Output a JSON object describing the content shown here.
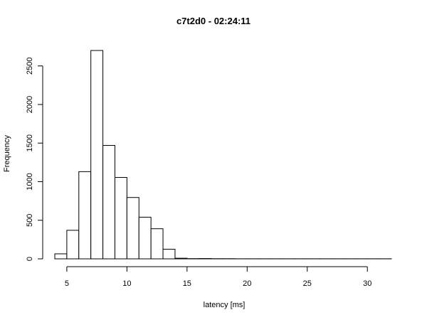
{
  "chart_data": {
    "type": "bar",
    "title": "c7t2d0 - 02:24:11",
    "xlabel": "latency [ms]",
    "ylabel": "Frequency",
    "bin_width": 1,
    "bins_start": [
      4,
      5,
      6,
      7,
      8,
      9,
      10,
      11,
      12,
      13,
      14,
      15,
      16,
      17,
      18,
      19,
      20,
      21,
      22,
      23,
      24,
      25,
      26,
      27,
      28,
      29,
      30,
      31
    ],
    "values": [
      65,
      370,
      1130,
      2700,
      1470,
      1055,
      795,
      540,
      390,
      125,
      8,
      3,
      4,
      2,
      2,
      1,
      1,
      1,
      1,
      1,
      1,
      1,
      1,
      1,
      1,
      1,
      1,
      1
    ],
    "xlim": [
      4,
      32
    ],
    "ylim": [
      0,
      2700
    ],
    "xticks": [
      5,
      10,
      15,
      20,
      25,
      30
    ],
    "yticks": [
      0,
      500,
      1000,
      1500,
      2000,
      2500
    ],
    "grid": false
  }
}
